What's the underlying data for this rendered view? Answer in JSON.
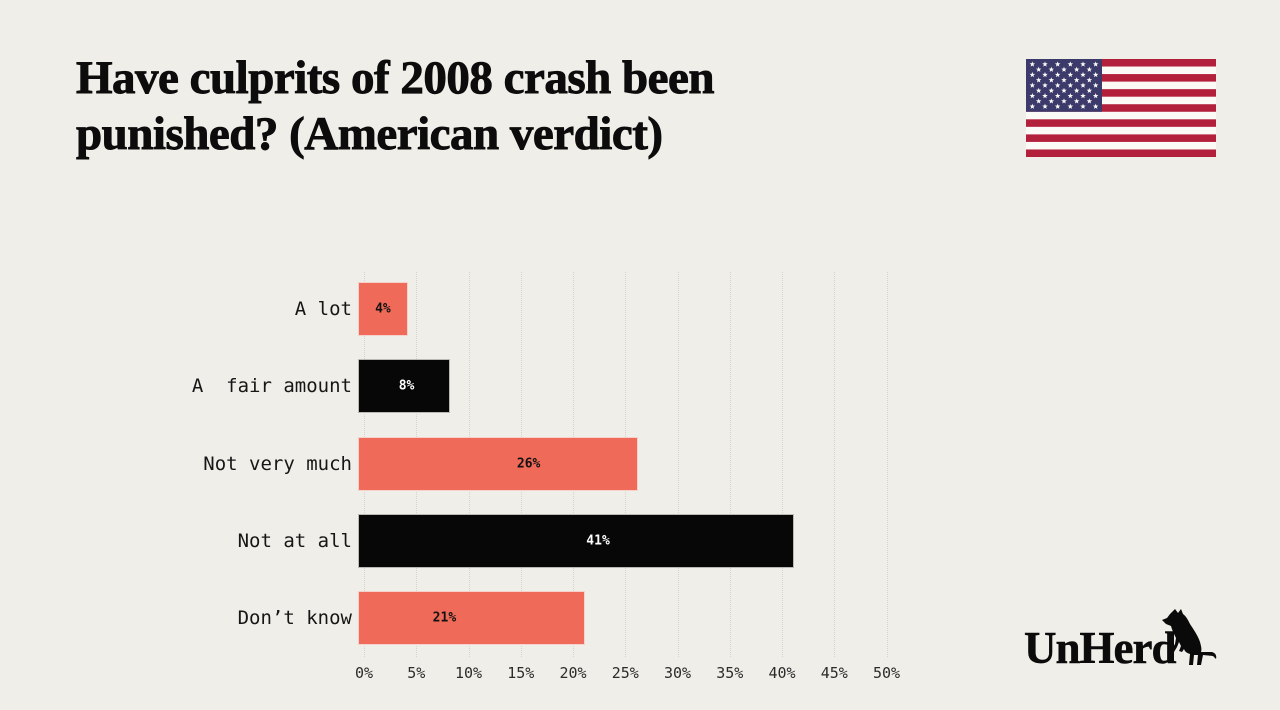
{
  "page": {
    "background": "#f0eee9"
  },
  "header": {
    "title_line1": "Have culprits of 2008 crash been",
    "title_line2": "punished? (American verdict)",
    "flag_icon": "us-flag-icon"
  },
  "chart_data": {
    "type": "bar",
    "orientation": "horizontal",
    "title": "Have culprits of 2008 crash been punished? (American verdict)",
    "categories": [
      "A lot",
      "A  fair amount",
      "Not very much",
      "Not at all",
      "Don’t know"
    ],
    "values": [
      4,
      8,
      26,
      41,
      21
    ],
    "value_labels": [
      "4%",
      "8%",
      "26%",
      "41%",
      "21%"
    ],
    "bar_colors": [
      "#ef6a58",
      "#070707",
      "#ef6a58",
      "#070707",
      "#ef6a58"
    ],
    "value_label_colors": [
      "#121212",
      "#ffffff",
      "#121212",
      "#ffffff",
      "#121212"
    ],
    "value_label_x_frac": [
      0.5,
      0.53,
      0.61,
      0.55,
      0.38
    ],
    "x_ticks": [
      "0%",
      "5%",
      "10%",
      "15%",
      "20%",
      "25%",
      "30%",
      "35%",
      "40%",
      "45%",
      "50%"
    ],
    "x_tick_values": [
      0,
      5,
      10,
      15,
      20,
      25,
      30,
      35,
      40,
      45,
      50
    ],
    "xlim": [
      0,
      50
    ],
    "xlabel": "",
    "ylabel": "",
    "grid": "vertical-dotted",
    "grid_color": "#d6d3cd",
    "legend": "none",
    "accent_color": "#ef6a58",
    "bar_black": "#070707",
    "axis_text_color": "#2b2b2b"
  },
  "icons": {
    "us_flag": {
      "red": "#b2203c",
      "blue": "#3b3a6b",
      "white": "#fbfaf7"
    },
    "cow_color": "#0a0a0a"
  },
  "footer": {
    "logo_text": "UnHerd",
    "logo_icon": "unherd-cow-icon"
  }
}
